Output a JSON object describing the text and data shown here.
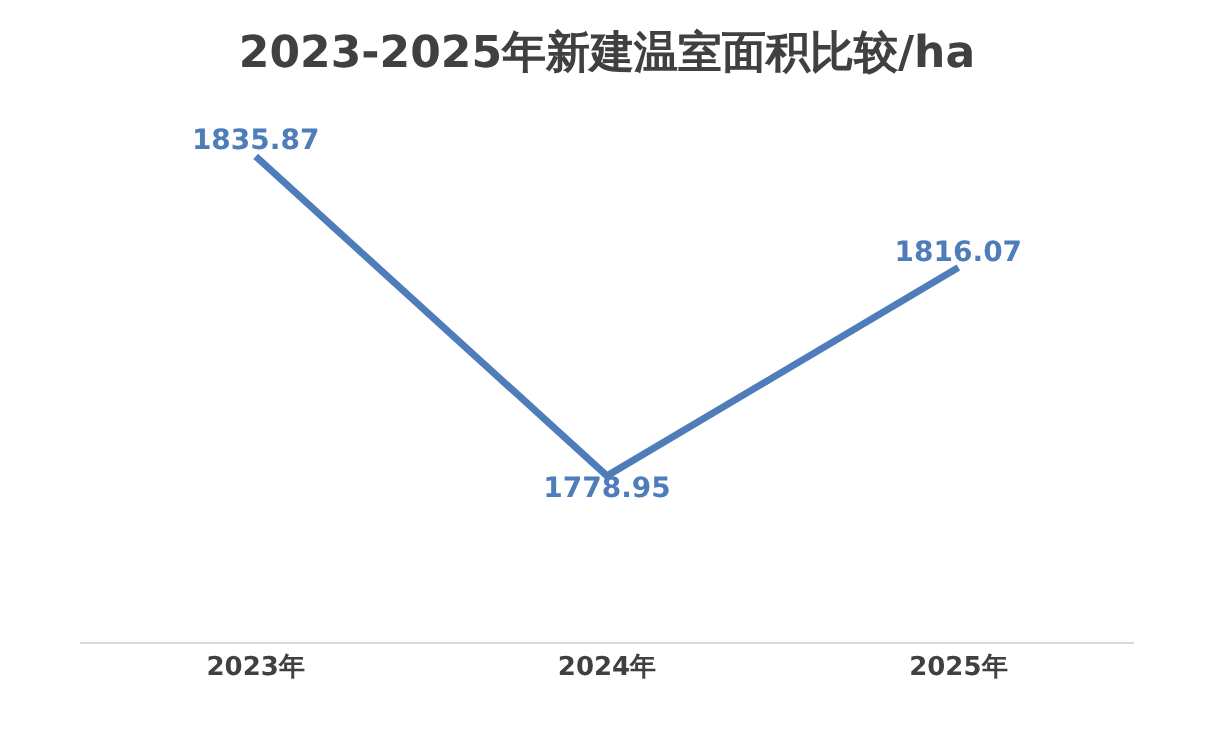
{
  "chart_data": {
    "type": "line",
    "title": "2023-2025年新建温室面积比较/ha",
    "categories": [
      "2023年",
      "2024年",
      "2025年"
    ],
    "series": [
      {
        "color": "#4f7dba",
        "values": [
          1835.87,
          1778.95,
          1816.07
        ]
      }
    ],
    "data_labels": true,
    "marker": "none",
    "line_style": "solid"
  }
}
